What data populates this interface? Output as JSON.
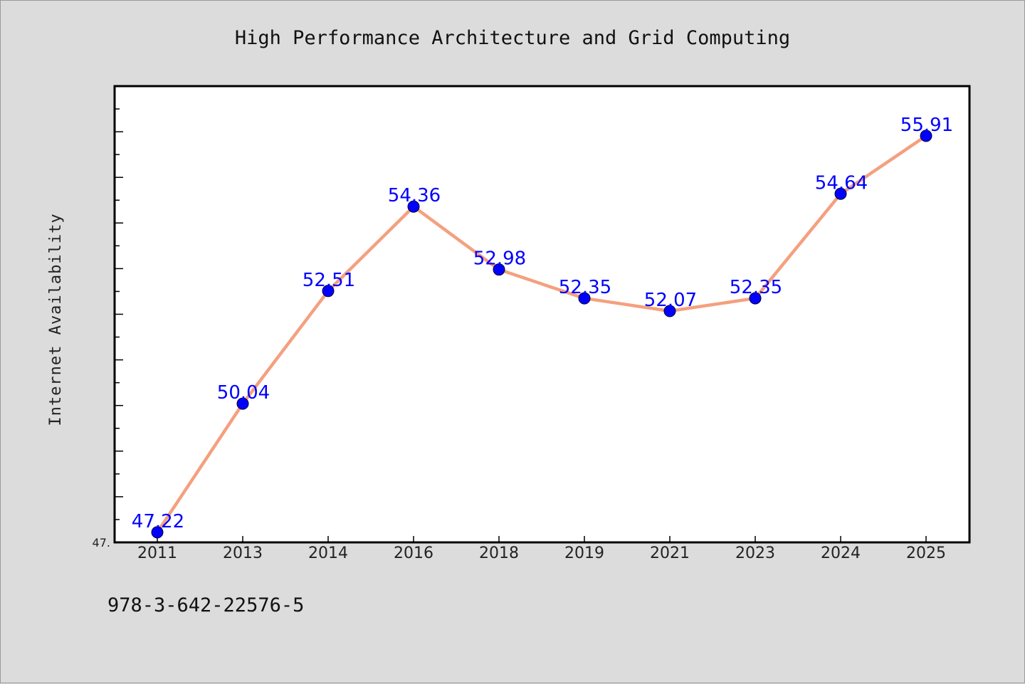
{
  "chart_data": {
    "type": "line",
    "title": "High Performance Architecture and Grid Computing",
    "xlabel": "",
    "ylabel": "Internet Availability",
    "categories": [
      "2011",
      "2013",
      "2014",
      "2016",
      "2018",
      "2019",
      "2021",
      "2023",
      "2024",
      "2025"
    ],
    "series": [
      {
        "values": [
          47.22,
          50.04,
          52.51,
          54.36,
          52.98,
          52.35,
          52.07,
          52.35,
          54.64,
          55.91
        ]
      }
    ],
    "data_labels": [
      "47.22",
      "50.04",
      "52.51",
      "54.36",
      "52.98",
      "52.35",
      "52.07",
      "52.35",
      "54.64",
      "55.91"
    ],
    "ylim": [
      47.0,
      57.0
    ],
    "y_tick_labels": [
      "47."
    ],
    "grid": false,
    "legend": "none",
    "line_color": "#f4a07f",
    "marker_color": "#0000ff",
    "label_color": "#0000ff"
  },
  "footer": {
    "text": "978-3-642-22576-5"
  }
}
